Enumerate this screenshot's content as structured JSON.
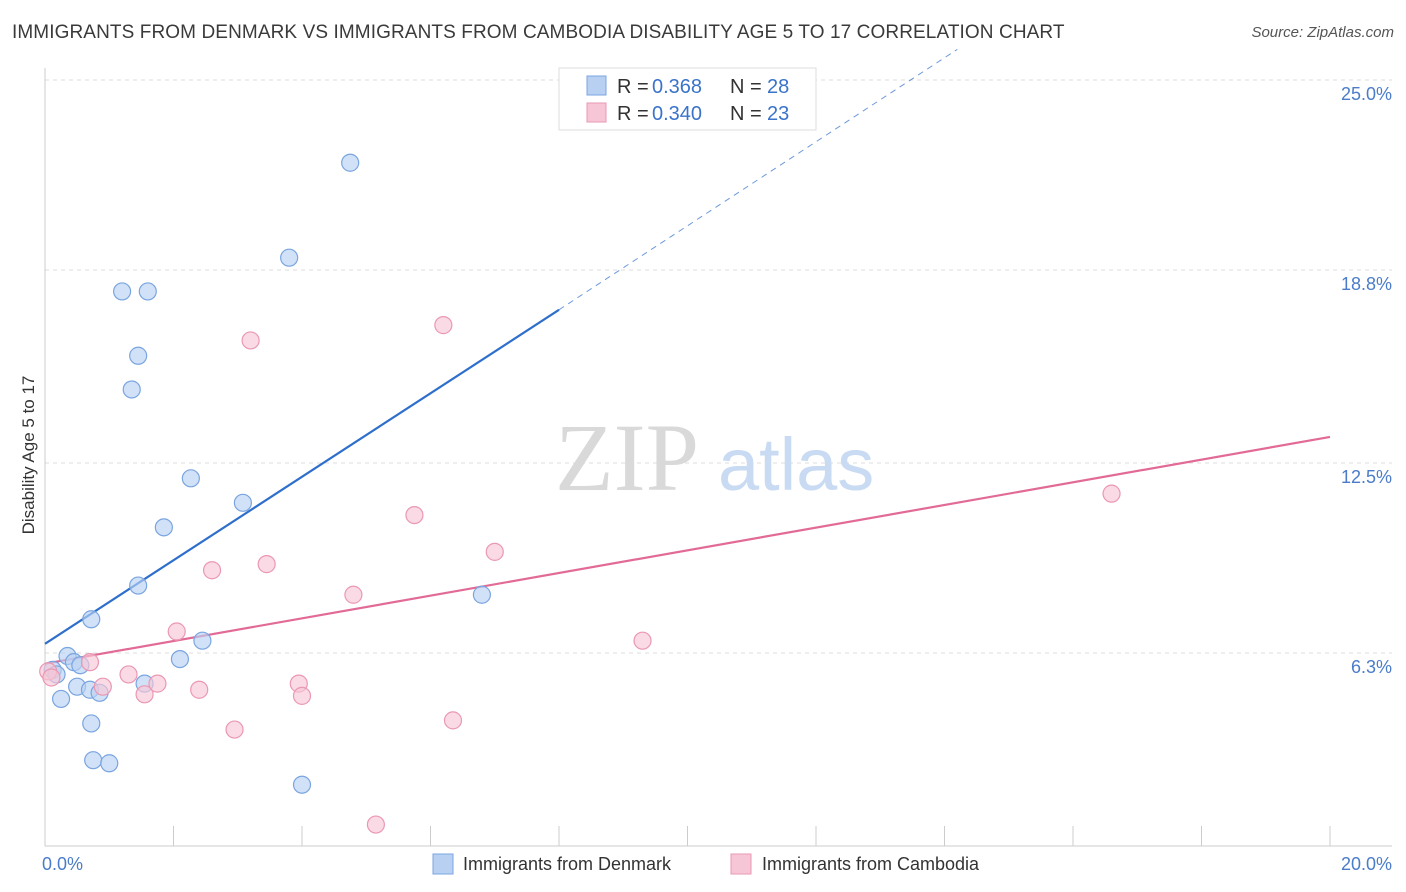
{
  "title": "IMMIGRANTS FROM DENMARK VS IMMIGRANTS FROM CAMBODIA DISABILITY AGE 5 TO 17 CORRELATION CHART",
  "source": "Source: ZipAtlas.com",
  "watermark": {
    "zip": "ZIP",
    "atlas": "atlas"
  },
  "colors": {
    "denmark_fill": "#b8d1f3",
    "denmark_stroke": "#7aa5e0",
    "denmark_line": "#2f6fcc",
    "cambodia_fill": "#f7c6d6",
    "cambodia_stroke": "#ea98b3",
    "cambodia_line": "#e26a96",
    "grid": "#dddddd",
    "axis": "#cccccc"
  },
  "legend": {
    "r_label": "R =",
    "n_label": "N =",
    "rows": [
      {
        "r": "0.368",
        "n": "28"
      },
      {
        "r": "0.340",
        "n": "23"
      }
    ]
  },
  "bottom_legend": {
    "denmark": "Immigrants from Denmark",
    "cambodia": "Immigrants from Cambodia"
  },
  "chart_data": {
    "type": "scatter",
    "title": "IMMIGRANTS FROM DENMARK VS IMMIGRANTS FROM CAMBODIA DISABILITY AGE 5 TO 17 CORRELATION CHART",
    "xlabel": "",
    "ylabel": "Disability Age 5 to 17",
    "xlim": [
      0,
      20
    ],
    "ylim": [
      0,
      25
    ],
    "x_tick_labels": [
      {
        "value": 0,
        "label": "0.0%"
      },
      {
        "value": 20,
        "label": "20.0%"
      }
    ],
    "y_tick_labels": [
      {
        "value": 6.3,
        "label": "6.3%"
      },
      {
        "value": 12.5,
        "label": "12.5%"
      },
      {
        "value": 18.8,
        "label": "18.8%"
      },
      {
        "value": 25.0,
        "label": "25.0%"
      }
    ],
    "series": [
      {
        "name": "Immigrants from Denmark",
        "r": 0.368,
        "n": 28,
        "trend": {
          "x0": 0.0,
          "y0": 6.6,
          "x1": 8.0,
          "y1": 17.5,
          "dashed_to_x": 14.2,
          "dashed_to_y": 26.0
        },
        "points": [
          [
            0.12,
            5.75
          ],
          [
            0.18,
            5.6
          ],
          [
            0.25,
            4.8
          ],
          [
            0.35,
            6.2
          ],
          [
            0.45,
            6.0
          ],
          [
            0.55,
            5.9
          ],
          [
            0.5,
            5.2
          ],
          [
            0.7,
            5.1
          ],
          [
            0.72,
            4.0
          ],
          [
            0.85,
            5.0
          ],
          [
            0.75,
            2.8
          ],
          [
            1.0,
            2.7
          ],
          [
            0.72,
            7.4
          ],
          [
            1.55,
            5.3
          ],
          [
            1.45,
            8.5
          ],
          [
            1.2,
            18.1
          ],
          [
            1.6,
            18.1
          ],
          [
            1.45,
            16.0
          ],
          [
            1.35,
            14.9
          ],
          [
            1.85,
            10.4
          ],
          [
            2.27,
            12.0
          ],
          [
            2.45,
            6.7
          ],
          [
            2.1,
            6.1
          ],
          [
            3.08,
            11.2
          ],
          [
            3.8,
            19.2
          ],
          [
            4.0,
            2.0
          ],
          [
            4.75,
            22.3
          ],
          [
            6.8,
            8.2
          ]
        ]
      },
      {
        "name": "Immigrants from Cambodia",
        "r": 0.34,
        "n": 23,
        "trend": {
          "x0": 0.0,
          "y0": 5.95,
          "x1": 20.0,
          "y1": 13.35
        },
        "points": [
          [
            0.05,
            5.7
          ],
          [
            0.7,
            6.0
          ],
          [
            0.9,
            5.2
          ],
          [
            1.3,
            5.6
          ],
          [
            1.55,
            4.95
          ],
          [
            1.75,
            5.3
          ],
          [
            2.05,
            7.0
          ],
          [
            2.4,
            5.1
          ],
          [
            2.6,
            9.0
          ],
          [
            2.95,
            3.8
          ],
          [
            3.2,
            16.5
          ],
          [
            3.45,
            9.2
          ],
          [
            3.95,
            5.3
          ],
          [
            4.0,
            4.9
          ],
          [
            4.8,
            8.2
          ],
          [
            5.15,
            0.7
          ],
          [
            5.75,
            10.8
          ],
          [
            6.2,
            17.0
          ],
          [
            6.35,
            4.1
          ],
          [
            7.0,
            9.6
          ],
          [
            9.3,
            6.7
          ],
          [
            16.6,
            11.5
          ],
          [
            0.1,
            5.5
          ]
        ]
      }
    ]
  }
}
